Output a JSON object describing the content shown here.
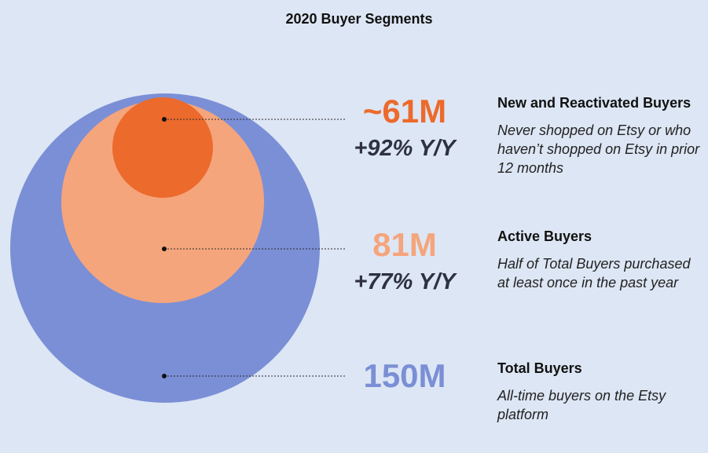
{
  "chart_data": {
    "type": "bubble",
    "title": "2020 Buyer Segments",
    "series": [
      {
        "name": "Total Buyers",
        "value_label": "150M",
        "value": 150,
        "growth": "",
        "description": "All-time buyers on the Etsy platform",
        "color": "#7b8fd6"
      },
      {
        "name": "Active Buyers",
        "value_label": "81M",
        "value": 81,
        "growth": "+77% Y/Y",
        "description": "Half of Total Buyers purchased at least once in the past year",
        "color": "#f5a57c"
      },
      {
        "name": "New and Reactivated Buyers",
        "value_label": "~61M",
        "value": 61,
        "growth": "+92% Y/Y",
        "description": "Never shopped on Etsy or who haven’t shopped on Etsy in prior 12 months",
        "color": "#ec6a2c"
      }
    ]
  },
  "colors": {
    "background": "#dde6f4",
    "total_value_text": "#7b8fd6",
    "active_value_text": "#f5a57c",
    "new_value_text": "#ec6a2c",
    "growth_text": "#2d3142",
    "leader_line": "#2a2a2a"
  }
}
